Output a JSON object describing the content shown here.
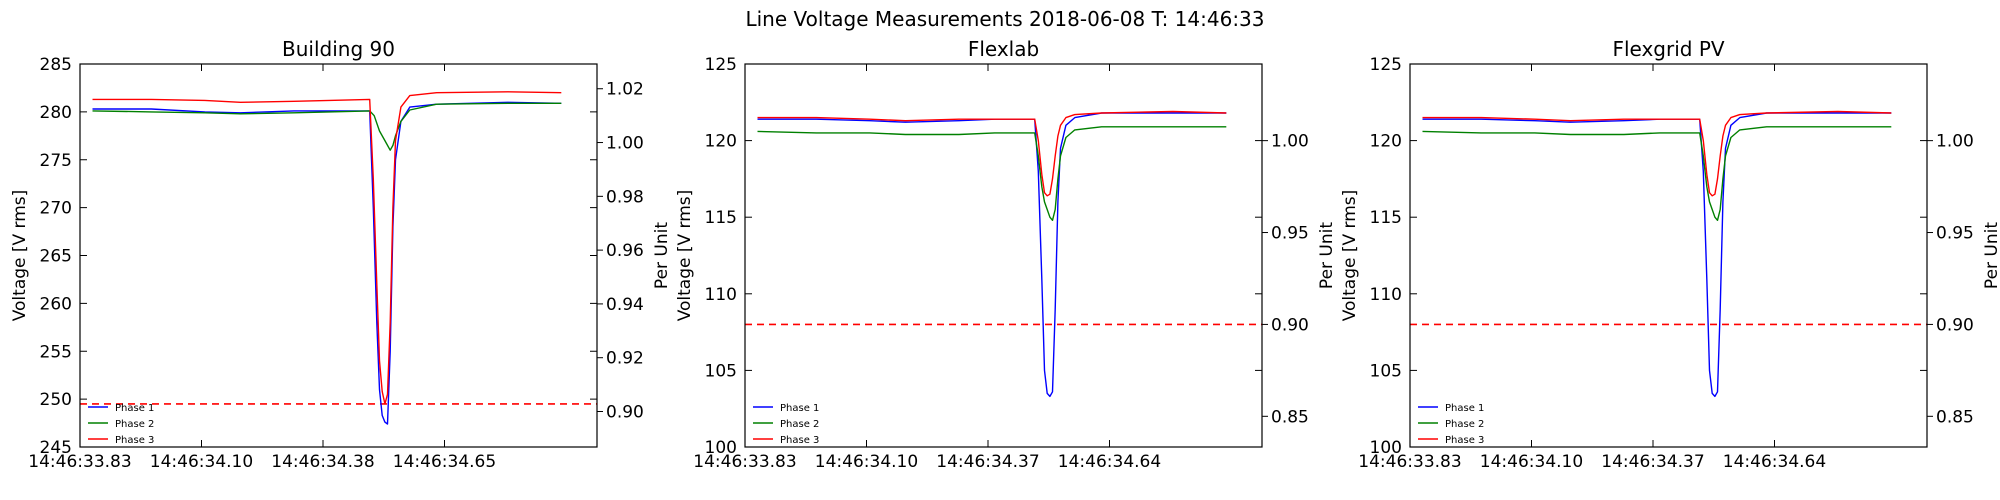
{
  "suptitle": "Line Voltage Measurements 2018-06-08 T: 14:46:33",
  "chart_data": [
    {
      "type": "line",
      "title": "Building 90",
      "ylabel": "Voltage [V rms]",
      "ylabel_right": "Per Unit",
      "ylim": [
        245,
        285
      ],
      "yticks": [
        245,
        250,
        255,
        260,
        265,
        270,
        275,
        280,
        285
      ],
      "ylim_right": [
        0.8868,
        1.0292
      ],
      "yticks_right": [
        "0.90",
        "0.92",
        "0.94",
        "0.96",
        "0.98",
        "1.00",
        "1.02"
      ],
      "xlim": [
        14.46,
        14.75
      ],
      "xticks": [
        "14:46:33.83",
        "14:46:34.10",
        "14:46:34.38",
        "14:46:34.65"
      ],
      "threshold": 249.5,
      "legend": {
        "position": "lower-left",
        "entries": [
          "Phase 1",
          "Phase 2",
          "Phase 3"
        ]
      },
      "series": [
        {
          "name": "Phase 1",
          "color": "#0000ff",
          "x": [
            14.467,
            14.5,
            14.53,
            14.55,
            14.58,
            14.6,
            14.6225,
            14.6245,
            14.6265,
            14.628,
            14.6295,
            14.631,
            14.6325,
            14.634,
            14.6355,
            14.637,
            14.64,
            14.645,
            14.66,
            14.7,
            14.73
          ],
          "y": [
            280.3,
            280.3,
            280.0,
            279.9,
            280.1,
            280.1,
            280.1,
            270.0,
            258.0,
            251.0,
            248.3,
            247.6,
            247.4,
            255.0,
            268.0,
            275.0,
            279.0,
            280.5,
            280.8,
            281.0,
            280.9
          ]
        },
        {
          "name": "Phase 2",
          "color": "#008000",
          "x": [
            14.467,
            14.5,
            14.53,
            14.55,
            14.58,
            14.6,
            14.6225,
            14.625,
            14.628,
            14.631,
            14.634,
            14.6355,
            14.637,
            14.64,
            14.645,
            14.66,
            14.7,
            14.73
          ],
          "y": [
            280.1,
            280.0,
            279.9,
            279.8,
            279.9,
            280.0,
            280.1,
            279.6,
            278.0,
            277.0,
            276.0,
            276.5,
            277.5,
            279.0,
            280.2,
            280.8,
            280.9,
            280.9
          ]
        },
        {
          "name": "Phase 3",
          "color": "#ff0000",
          "x": [
            14.467,
            14.5,
            14.53,
            14.55,
            14.58,
            14.6,
            14.6225,
            14.6245,
            14.6265,
            14.628,
            14.6295,
            14.631,
            14.6325,
            14.634,
            14.6355,
            14.637,
            14.64,
            14.645,
            14.66,
            14.7,
            14.73
          ],
          "y": [
            281.3,
            281.3,
            281.2,
            281.0,
            281.1,
            281.2,
            281.3,
            273.0,
            262.0,
            254.0,
            250.8,
            249.5,
            250.5,
            258.0,
            270.0,
            277.0,
            280.5,
            281.7,
            282.0,
            282.1,
            282.0
          ]
        }
      ]
    },
    {
      "type": "line",
      "title": "Flexlab",
      "ylabel": "Voltage [V rms]",
      "ylabel_right": "Per Unit",
      "ylim": [
        100,
        125
      ],
      "yticks": [
        100,
        105,
        110,
        115,
        120,
        125
      ],
      "ylim_right": [
        0.8333,
        1.0417
      ],
      "yticks_right": [
        "0.85",
        "0.90",
        "0.95",
        "1.00"
      ],
      "xlim": [
        14.46,
        14.75
      ],
      "xticks": [
        "14:46:33.83",
        "14:46:34.10",
        "14:46:34.37",
        "14:46:34.64"
      ],
      "threshold": 108,
      "legend": {
        "position": "lower-left",
        "entries": [
          "Phase 1",
          "Phase 2",
          "Phase 3"
        ]
      },
      "series": [
        {
          "name": "Phase 1",
          "color": "#0000ff",
          "x": [
            14.467,
            14.5,
            14.53,
            14.55,
            14.58,
            14.6,
            14.6225,
            14.6245,
            14.6265,
            14.628,
            14.6295,
            14.631,
            14.6325,
            14.634,
            14.6355,
            14.637,
            14.64,
            14.645,
            14.66,
            14.7,
            14.73
          ],
          "y": [
            121.4,
            121.4,
            121.3,
            121.2,
            121.3,
            121.4,
            121.4,
            118.0,
            111.0,
            105.0,
            103.5,
            103.3,
            103.6,
            109.0,
            116.0,
            119.5,
            121.0,
            121.5,
            121.8,
            121.8,
            121.8
          ]
        },
        {
          "name": "Phase 2",
          "color": "#008000",
          "x": [
            14.467,
            14.5,
            14.53,
            14.55,
            14.58,
            14.6,
            14.6225,
            14.6245,
            14.6265,
            14.628,
            14.6295,
            14.631,
            14.6325,
            14.634,
            14.6355,
            14.637,
            14.64,
            14.645,
            14.66,
            14.7,
            14.73
          ],
          "y": [
            120.6,
            120.5,
            120.5,
            120.4,
            120.4,
            120.5,
            120.5,
            119.0,
            117.0,
            116.0,
            115.5,
            115.0,
            114.8,
            115.5,
            117.5,
            119.0,
            120.2,
            120.7,
            120.9,
            120.9,
            120.9
          ]
        },
        {
          "name": "Phase 3",
          "color": "#ff0000",
          "x": [
            14.467,
            14.5,
            14.53,
            14.55,
            14.58,
            14.6,
            14.6225,
            14.6245,
            14.6265,
            14.628,
            14.6295,
            14.631,
            14.6325,
            14.634,
            14.6355,
            14.637,
            14.64,
            14.645,
            14.66,
            14.7,
            14.73
          ],
          "y": [
            121.5,
            121.5,
            121.4,
            121.3,
            121.4,
            121.4,
            121.4,
            120.0,
            117.8,
            116.6,
            116.4,
            116.5,
            117.5,
            119.0,
            120.3,
            121.0,
            121.5,
            121.7,
            121.8,
            121.9,
            121.8
          ]
        }
      ]
    },
    {
      "type": "line",
      "title": "Flexgrid PV",
      "ylabel": "Voltage [V rms]",
      "ylabel_right": "Per Unit",
      "ylim": [
        100,
        125
      ],
      "yticks": [
        100,
        105,
        110,
        115,
        120,
        125
      ],
      "ylim_right": [
        0.8333,
        1.0417
      ],
      "yticks_right": [
        "0.85",
        "0.90",
        "0.95",
        "1.00"
      ],
      "xlim": [
        14.46,
        14.75
      ],
      "xticks": [
        "14:46:33.83",
        "14:46:34.10",
        "14:46:34.37",
        "14:46:34.64"
      ],
      "threshold": 108,
      "legend": {
        "position": "lower-left",
        "entries": [
          "Phase 1",
          "Phase 2",
          "Phase 3"
        ]
      },
      "series": [
        {
          "name": "Phase 1",
          "color": "#0000ff",
          "x": [
            14.467,
            14.5,
            14.53,
            14.55,
            14.58,
            14.6,
            14.6225,
            14.6245,
            14.6265,
            14.628,
            14.6295,
            14.631,
            14.6325,
            14.634,
            14.6355,
            14.637,
            14.64,
            14.645,
            14.66,
            14.7,
            14.73
          ],
          "y": [
            121.4,
            121.4,
            121.3,
            121.2,
            121.3,
            121.4,
            121.4,
            118.0,
            111.0,
            105.0,
            103.5,
            103.3,
            103.6,
            109.0,
            116.0,
            119.5,
            121.0,
            121.5,
            121.8,
            121.8,
            121.8
          ]
        },
        {
          "name": "Phase 2",
          "color": "#008000",
          "x": [
            14.467,
            14.5,
            14.53,
            14.55,
            14.58,
            14.6,
            14.6225,
            14.6245,
            14.6265,
            14.628,
            14.6295,
            14.631,
            14.6325,
            14.634,
            14.6355,
            14.637,
            14.64,
            14.645,
            14.66,
            14.7,
            14.73
          ],
          "y": [
            120.6,
            120.5,
            120.5,
            120.4,
            120.4,
            120.5,
            120.5,
            119.0,
            117.0,
            116.0,
            115.5,
            115.0,
            114.8,
            115.5,
            117.5,
            119.0,
            120.2,
            120.7,
            120.9,
            120.9,
            120.9
          ]
        },
        {
          "name": "Phase 3",
          "color": "#ff0000",
          "x": [
            14.467,
            14.5,
            14.53,
            14.55,
            14.58,
            14.6,
            14.6225,
            14.6245,
            14.6265,
            14.628,
            14.6295,
            14.631,
            14.6325,
            14.634,
            14.6355,
            14.637,
            14.64,
            14.645,
            14.66,
            14.7,
            14.73
          ],
          "y": [
            121.5,
            121.5,
            121.4,
            121.3,
            121.4,
            121.4,
            121.4,
            120.0,
            117.8,
            116.6,
            116.4,
            116.5,
            117.5,
            119.0,
            120.3,
            121.0,
            121.5,
            121.7,
            121.8,
            121.9,
            121.8
          ]
        }
      ]
    }
  ]
}
